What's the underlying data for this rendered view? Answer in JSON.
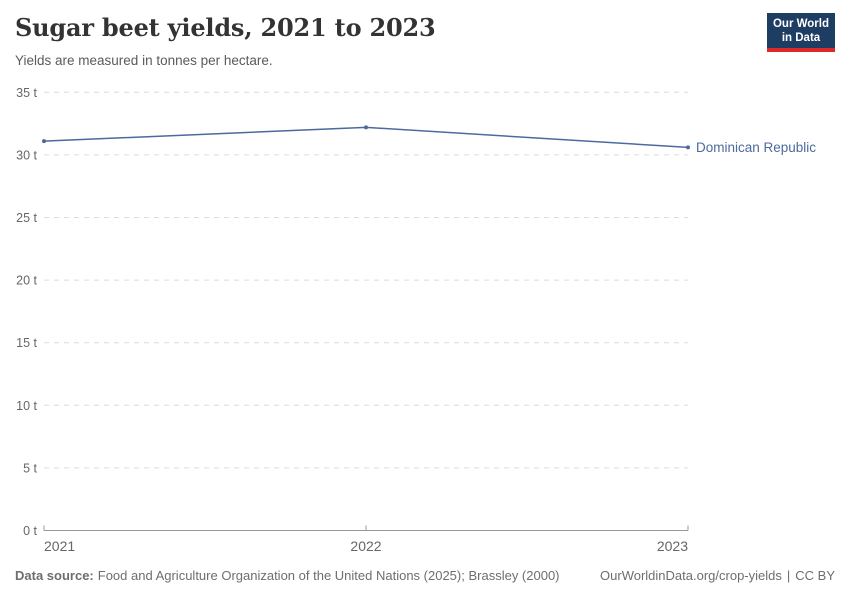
{
  "colors": {
    "line": "#4C6A9C",
    "logo-bg": "#1d3d63",
    "logo-bar": "#dc2a27",
    "grid": "#dcdcdc",
    "axis": "#999999",
    "tick-text": "#666666",
    "title-text": "#333333",
    "subtitle-text": "#5b5b5b",
    "footer-text": "#6e6e6e"
  },
  "header": {
    "logo_line1": "Our World",
    "logo_line2": "in Data"
  },
  "chart_data": {
    "type": "line",
    "title": "Sugar beet yields, 2021 to 2023",
    "subtitle": "Yields are measured in tonnes per hectare.",
    "x": [
      2021,
      2022,
      2023
    ],
    "series": [
      {
        "name": "Dominican Republic",
        "color": "#4C6A9C",
        "values": [
          31.1,
          32.2,
          30.6
        ]
      }
    ],
    "ylim": [
      0,
      35
    ],
    "yticks": [
      0,
      5,
      10,
      15,
      20,
      25,
      30,
      35
    ],
    "ytick_format": "{v} t",
    "xticks": [
      2021,
      2022,
      2023
    ],
    "grid": "horizontal-dashed",
    "legend": "entity-label-right"
  },
  "footer": {
    "source_label": "Data source:",
    "source_text": "Food and Agriculture Organization of the United Nations (2025); Brassley (2000)",
    "url": "OurWorldinData.org/crop-yields",
    "separator": "|",
    "license": "CC BY"
  }
}
